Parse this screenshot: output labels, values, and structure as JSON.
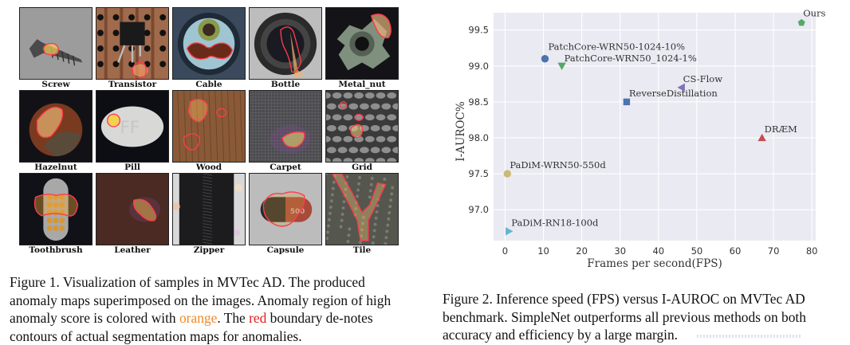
{
  "figure1": {
    "tiles": [
      {
        "label": "Screw",
        "theme": "screw"
      },
      {
        "label": "Transistor",
        "theme": "transistor"
      },
      {
        "label": "Cable",
        "theme": "cable"
      },
      {
        "label": "Bottle",
        "theme": "bottle"
      },
      {
        "label": "Metal_nut",
        "theme": "metalnut"
      },
      {
        "label": "Hazelnut",
        "theme": "hazelnut"
      },
      {
        "label": "Pill",
        "theme": "pill"
      },
      {
        "label": "Wood",
        "theme": "wood"
      },
      {
        "label": "Carpet",
        "theme": "carpet"
      },
      {
        "label": "Grid",
        "theme": "grid"
      },
      {
        "label": "Toothbrush",
        "theme": "toothbrush"
      },
      {
        "label": "Leather",
        "theme": "leather"
      },
      {
        "label": "Zipper",
        "theme": "zipper"
      },
      {
        "label": "Capsule",
        "theme": "capsule"
      },
      {
        "label": "Tile",
        "theme": "tile"
      }
    ],
    "capsule_print": "500",
    "caption": {
      "part1": "Figure 1. Visualization of samples in MVTec AD. The produced anomaly maps superimposed on the images. Anomaly region of high anomaly score is colored with ",
      "orange_word": "orange",
      "part2": ". The ",
      "red_word": "red",
      "part3": " boundary de-notes contours of actual segmentation maps for anomalies."
    },
    "colors": {
      "orange": "#f08a24",
      "red": "#e01b1b",
      "contour": "#ff3b4a"
    }
  },
  "figure2": {
    "caption": "Figure 2. Inference speed (FPS) versus I-AUROC on MVTec AD benchmark. SimpleNet outperforms all previous methods on both accuracy and efficiency by a large margin."
  },
  "chart_data": {
    "type": "scatter",
    "title": "",
    "xlabel": "Frames per second(FPS)",
    "ylabel": "I-AUROC%",
    "xlim": [
      -3,
      81
    ],
    "ylim": [
      96.57,
      99.74
    ],
    "xticks": [
      0,
      10,
      20,
      30,
      40,
      50,
      60,
      70,
      80
    ],
    "yticks": [
      97.0,
      97.5,
      98.0,
      98.5,
      99.0,
      99.5
    ],
    "xtick_labels": [
      "0",
      "10",
      "20",
      "30",
      "40",
      "50",
      "60",
      "70",
      "80"
    ],
    "ytick_labels": [
      "97.0",
      "97.5",
      "98.0",
      "98.5",
      "99.0",
      "99.5"
    ],
    "grid": true,
    "background": "#eaeaf2",
    "points": [
      {
        "name": "Ours",
        "x": 77.3,
        "y": 99.6,
        "marker": "pentagon",
        "color": "#55a868"
      },
      {
        "name": "PatchCore-WRN50-1024-10%",
        "x": 10.4,
        "y": 99.1,
        "marker": "circle",
        "color": "#4c72b0"
      },
      {
        "name": "PatchCore-WRN50_1024-1%",
        "x": 14.8,
        "y": 99.0,
        "marker": "triangle-down",
        "color": "#55a868"
      },
      {
        "name": "CS-Flow",
        "x": 46.0,
        "y": 98.7,
        "marker": "triangle-left",
        "color": "#8172b3"
      },
      {
        "name": "ReverseDistillation",
        "x": 31.7,
        "y": 98.5,
        "marker": "square",
        "color": "#4c72b0"
      },
      {
        "name": "DRÆM",
        "x": 67.0,
        "y": 98.0,
        "marker": "triangle-up",
        "color": "#c44e52"
      },
      {
        "name": "PaDiM-WRN50-550d",
        "x": 0.6,
        "y": 97.5,
        "marker": "circle",
        "color": "#ccb974"
      },
      {
        "name": "PaDiM-RN18-100d",
        "x": 1.0,
        "y": 96.7,
        "marker": "triangle-right",
        "color": "#64b5cd"
      }
    ]
  }
}
